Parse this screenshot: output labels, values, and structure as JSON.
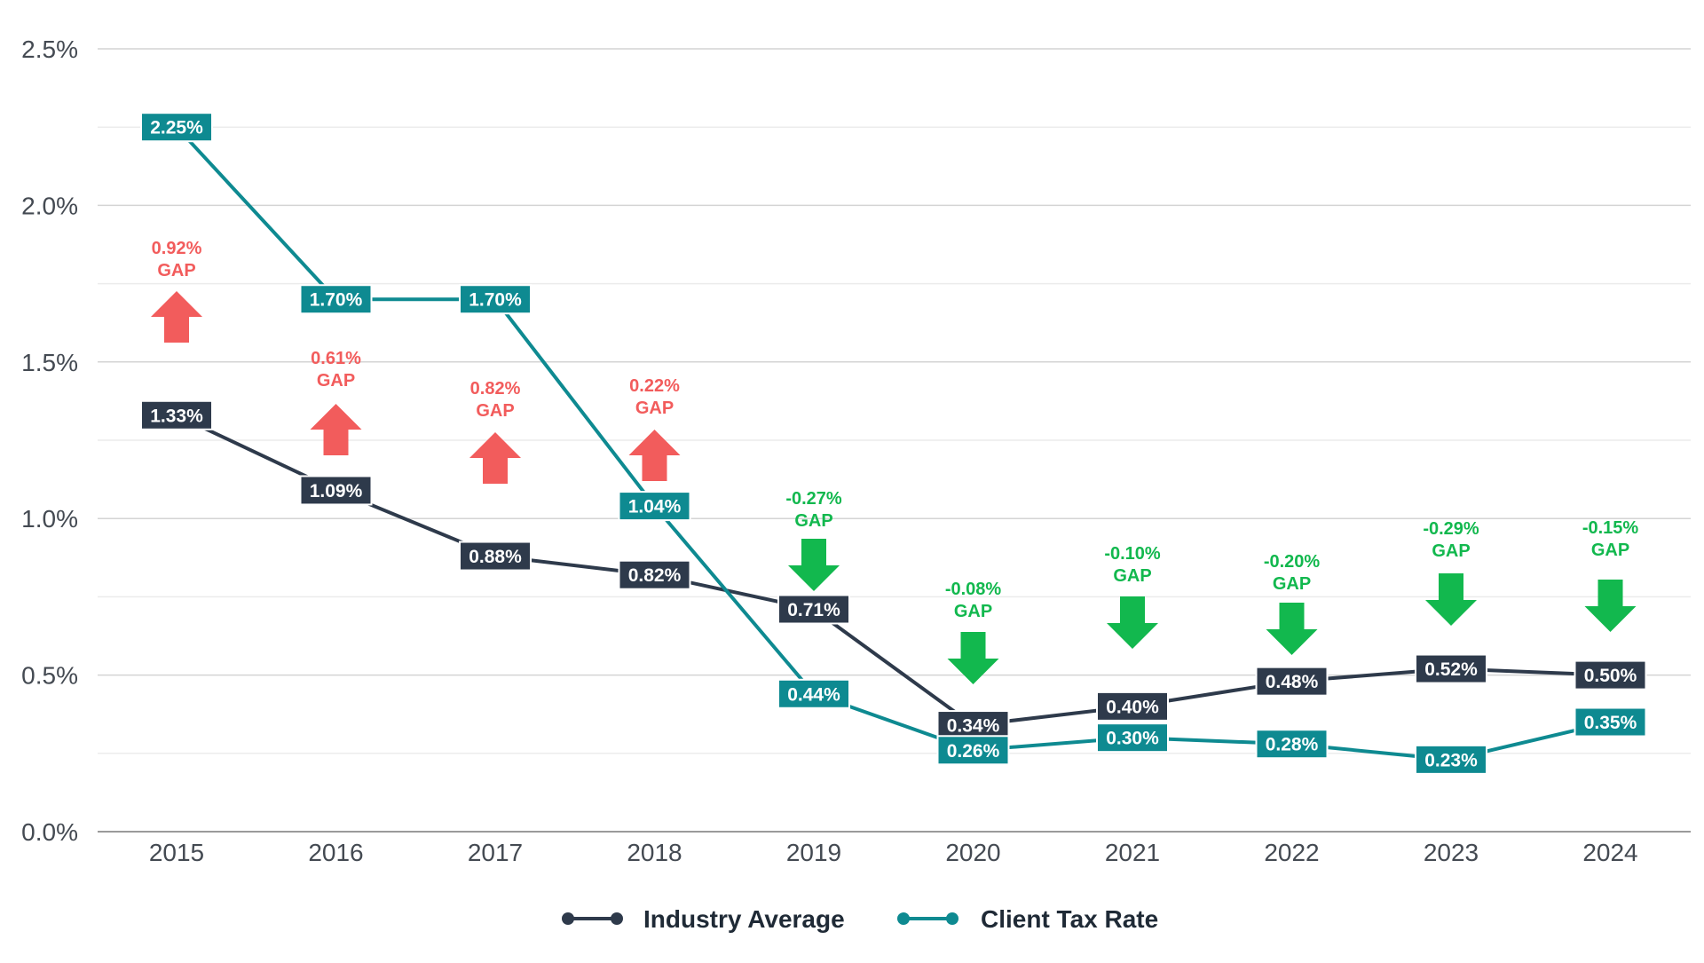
{
  "chart_data": {
    "type": "line",
    "title": "",
    "xlabel": "",
    "ylabel": "",
    "x": [
      "2015",
      "2016",
      "2017",
      "2018",
      "2019",
      "2020",
      "2021",
      "2022",
      "2023",
      "2024"
    ],
    "ylim": [
      0,
      2.5
    ],
    "y_ticks": [
      "0.0%",
      "0.5%",
      "1.0%",
      "1.5%",
      "2.0%",
      "2.5%"
    ],
    "y_tick_values": [
      0,
      0.5,
      1.0,
      1.5,
      2.0,
      2.5
    ],
    "grid": true,
    "legend_position": "bottom-center",
    "series": [
      {
        "name": "Industry Average",
        "color": "#2e3a4b",
        "values": [
          1.33,
          1.09,
          0.88,
          0.82,
          0.71,
          0.34,
          0.4,
          0.48,
          0.52,
          0.5
        ],
        "labels": [
          "1.33%",
          "1.09%",
          "0.88%",
          "0.82%",
          "0.71%",
          "0.34%",
          "0.40%",
          "0.48%",
          "0.52%",
          "0.50%"
        ]
      },
      {
        "name": "Client Tax Rate",
        "color": "#0e8a91",
        "values": [
          2.25,
          1.7,
          1.7,
          1.04,
          0.44,
          0.26,
          0.3,
          0.28,
          0.23,
          0.35
        ],
        "labels": [
          "2.25%",
          "1.70%",
          "1.70%",
          "1.04%",
          "0.44%",
          "0.26%",
          "0.30%",
          "0.28%",
          "0.23%",
          "0.35%"
        ]
      }
    ],
    "gaps": [
      {
        "value": "0.92%",
        "word": "GAP",
        "direction": "up"
      },
      {
        "value": "0.61%",
        "word": "GAP",
        "direction": "up"
      },
      {
        "value": "0.82%",
        "word": "GAP",
        "direction": "up"
      },
      {
        "value": "0.22%",
        "word": "GAP",
        "direction": "up"
      },
      {
        "value": "-0.27%",
        "word": "GAP",
        "direction": "down"
      },
      {
        "value": "-0.08%",
        "word": "GAP",
        "direction": "down"
      },
      {
        "value": "-0.10%",
        "word": "GAP",
        "direction": "down"
      },
      {
        "value": "-0.20%",
        "word": "GAP",
        "direction": "down"
      },
      {
        "value": "-0.29%",
        "word": "GAP",
        "direction": "down"
      },
      {
        "value": "-0.15%",
        "word": "GAP",
        "direction": "down"
      }
    ],
    "colors": {
      "gap_up": "#f25c5c",
      "gap_down": "#12b84e",
      "grid_major": "#d4d4d4",
      "grid_minor": "#ececec"
    }
  }
}
